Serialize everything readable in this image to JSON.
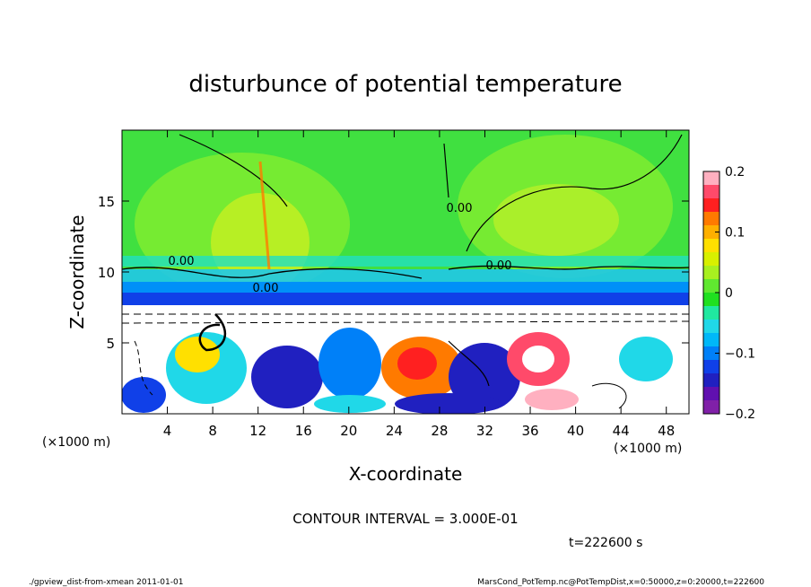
{
  "chart_data": {
    "type": "heatmap",
    "title": "disturbunce of potential temperature",
    "xlabel": "X-coordinate",
    "ylabel": "Z-coordinate",
    "x_unit_left": "(×1000 m)",
    "x_unit_right": "(×1000 m)",
    "xlim": [
      0,
      50
    ],
    "ylim": [
      0,
      20
    ],
    "xticks": [
      4,
      8,
      12,
      16,
      20,
      24,
      28,
      32,
      36,
      40,
      44,
      48
    ],
    "yticks": [
      5,
      10,
      15
    ],
    "colorbar": {
      "range": [
        -0.2,
        0.2
      ],
      "tick_values": [
        0.2,
        0.1,
        0,
        -0.1,
        -0.2
      ],
      "tick_labels": [
        "0.2",
        "0.1",
        "0",
        "−0.1",
        "−0.2"
      ],
      "colors": [
        "#ffb0c0",
        "#ff4a6a",
        "#ff2020",
        "#ff7a00",
        "#ffb000",
        "#ffe000",
        "#d8f000",
        "#a8f020",
        "#60e830",
        "#20e020",
        "#20e8a0",
        "#20d8e8",
        "#00b8f8",
        "#0080f8",
        "#1040e8",
        "#2020c0",
        "#6010b0",
        "#8020a8"
      ]
    },
    "contour_labels": [
      "0.00",
      "0.00",
      "0.00",
      "0.00"
    ],
    "contour_interval": "CONTOUR INTERVAL = 3.000E-01",
    "time": "t=222600 s",
    "grid": false
  },
  "footer": {
    "left": "./gpview_dist-from-xmean  2011-01-01",
    "right": "MarsCond_PotTemp.nc@PotTempDist,x=0:50000,z=0:20000,t=222600"
  }
}
